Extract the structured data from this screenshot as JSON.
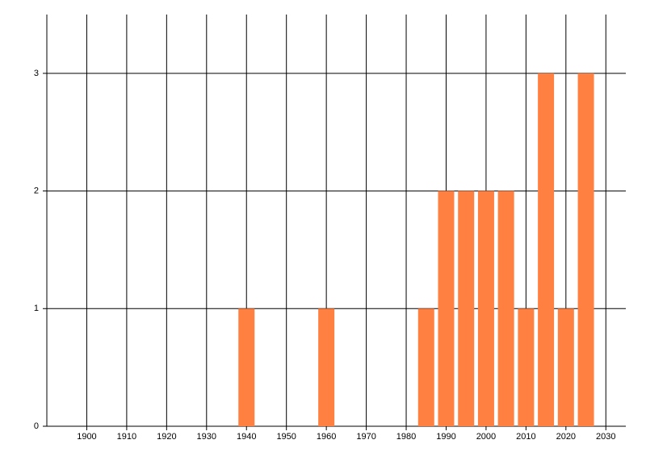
{
  "chart_data": {
    "type": "bar",
    "x": [
      1940,
      1960,
      1985,
      1990,
      1995,
      2000,
      2005,
      2010,
      2015,
      2020,
      2025
    ],
    "values": [
      1,
      1,
      1,
      2,
      2,
      2,
      2,
      1,
      3,
      1,
      3
    ],
    "color": "#ff8040",
    "xlim": [
      1890,
      2035
    ],
    "xticks": [
      1900,
      1910,
      1920,
      1930,
      1940,
      1950,
      1960,
      1970,
      1980,
      1990,
      2000,
      2010,
      2020,
      2030
    ],
    "ylim": [
      0,
      3.5
    ],
    "yticks": [
      0,
      1,
      2,
      3
    ],
    "grid": true
  }
}
